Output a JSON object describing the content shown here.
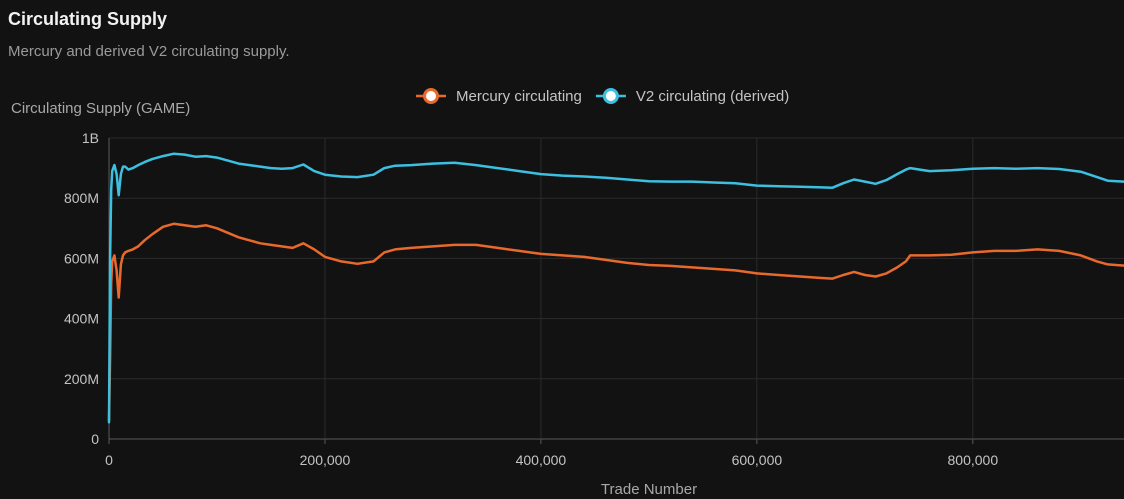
{
  "card": {
    "title": "Circulating Supply",
    "subtitle": "Mercury and derived V2 circulating supply."
  },
  "chart_data": {
    "type": "line",
    "ylabel": "Circulating Supply (GAME)",
    "xlabel": "Trade Number",
    "xlim": [
      0,
      940000
    ],
    "ylim": [
      0,
      1000000000
    ],
    "x_ticks": [
      0,
      200000,
      400000,
      600000,
      800000
    ],
    "x_tick_labels": [
      "0",
      "200,000",
      "400,000",
      "600,000",
      "800,000"
    ],
    "y_ticks": [
      0,
      200000000,
      400000000,
      600000000,
      800000000,
      1000000000
    ],
    "y_tick_labels": [
      "0",
      "200M",
      "400M",
      "600M",
      "800M",
      "1B"
    ],
    "grid": true,
    "legend_position": "top-center",
    "series": [
      {
        "name": "Mercury circulating",
        "color": "#e8692c",
        "x": [
          0,
          1000,
          2000,
          3000,
          5000,
          7000,
          9000,
          11000,
          13000,
          15000,
          18000,
          22000,
          27000,
          33000,
          40000,
          50000,
          60000,
          70000,
          80000,
          90000,
          100000,
          110000,
          120000,
          130000,
          140000,
          150000,
          160000,
          170000,
          180000,
          190000,
          200000,
          215000,
          230000,
          245000,
          255000,
          265000,
          280000,
          300000,
          320000,
          340000,
          360000,
          380000,
          400000,
          420000,
          440000,
          460000,
          480000,
          500000,
          520000,
          540000,
          560000,
          580000,
          600000,
          620000,
          640000,
          660000,
          670000,
          680000,
          690000,
          700000,
          710000,
          720000,
          730000,
          738000,
          742000,
          760000,
          780000,
          800000,
          820000,
          840000,
          860000,
          880000,
          900000,
          915000,
          925000,
          940000
        ],
        "y": [
          60000000,
          270000000,
          520000000,
          590000000,
          610000000,
          560000000,
          470000000,
          580000000,
          610000000,
          620000000,
          625000000,
          630000000,
          640000000,
          660000000,
          680000000,
          705000000,
          715000000,
          710000000,
          705000000,
          710000000,
          700000000,
          685000000,
          670000000,
          660000000,
          650000000,
          645000000,
          640000000,
          635000000,
          650000000,
          630000000,
          605000000,
          590000000,
          582000000,
          590000000,
          620000000,
          630000000,
          635000000,
          640000000,
          645000000,
          645000000,
          635000000,
          625000000,
          615000000,
          610000000,
          605000000,
          595000000,
          585000000,
          578000000,
          575000000,
          570000000,
          565000000,
          560000000,
          550000000,
          545000000,
          540000000,
          535000000,
          533000000,
          545000000,
          555000000,
          545000000,
          540000000,
          550000000,
          570000000,
          590000000,
          610000000,
          610000000,
          612000000,
          620000000,
          625000000,
          625000000,
          630000000,
          625000000,
          610000000,
          590000000,
          580000000,
          576000000
        ]
      },
      {
        "name": "V2 circulating (derived)",
        "color": "#3cbfe0",
        "x": [
          0,
          1000,
          2000,
          3000,
          5000,
          7000,
          9000,
          11000,
          13000,
          15000,
          18000,
          22000,
          27000,
          33000,
          40000,
          50000,
          60000,
          70000,
          80000,
          90000,
          100000,
          110000,
          120000,
          130000,
          140000,
          150000,
          160000,
          170000,
          180000,
          190000,
          200000,
          215000,
          230000,
          245000,
          255000,
          265000,
          280000,
          300000,
          320000,
          340000,
          360000,
          380000,
          400000,
          420000,
          440000,
          460000,
          480000,
          500000,
          520000,
          540000,
          560000,
          580000,
          600000,
          620000,
          640000,
          660000,
          670000,
          680000,
          690000,
          700000,
          710000,
          720000,
          730000,
          738000,
          742000,
          760000,
          780000,
          800000,
          820000,
          840000,
          860000,
          880000,
          900000,
          915000,
          925000,
          940000
        ],
        "y": [
          55000000,
          600000000,
          830000000,
          890000000,
          910000000,
          880000000,
          810000000,
          880000000,
          905000000,
          905000000,
          895000000,
          900000000,
          910000000,
          920000000,
          930000000,
          940000000,
          948000000,
          945000000,
          938000000,
          940000000,
          935000000,
          925000000,
          915000000,
          910000000,
          905000000,
          900000000,
          898000000,
          900000000,
          912000000,
          890000000,
          878000000,
          872000000,
          870000000,
          878000000,
          900000000,
          908000000,
          910000000,
          915000000,
          918000000,
          910000000,
          900000000,
          890000000,
          880000000,
          875000000,
          872000000,
          868000000,
          862000000,
          856000000,
          855000000,
          855000000,
          852000000,
          850000000,
          842000000,
          840000000,
          838000000,
          836000000,
          835000000,
          850000000,
          862000000,
          855000000,
          848000000,
          860000000,
          880000000,
          895000000,
          900000000,
          890000000,
          893000000,
          898000000,
          900000000,
          898000000,
          900000000,
          897000000,
          888000000,
          870000000,
          858000000,
          855000000
        ]
      }
    ]
  }
}
